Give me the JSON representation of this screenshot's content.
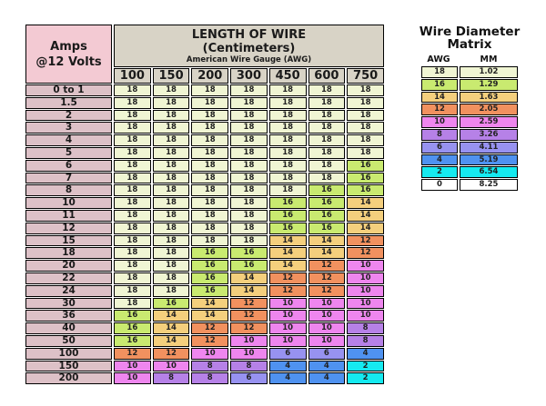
{
  "chart_data": [
    {
      "type": "table",
      "corner_header_line1": "Amps",
      "corner_header_line2": "@12 Volts",
      "title": "LENGTH OF WIRE",
      "subtitle": "(Centimeters)",
      "caption": "American Wire Gauge (AWG)",
      "columns": [
        "100",
        "150",
        "200",
        "300",
        "450",
        "600",
        "750"
      ],
      "rows": [
        {
          "label": "0 to 1",
          "values": [
            18,
            18,
            18,
            18,
            18,
            18,
            18
          ]
        },
        {
          "label": "1.5",
          "values": [
            18,
            18,
            18,
            18,
            18,
            18,
            18
          ]
        },
        {
          "label": "2",
          "values": [
            18,
            18,
            18,
            18,
            18,
            18,
            18
          ]
        },
        {
          "label": "3",
          "values": [
            18,
            18,
            18,
            18,
            18,
            18,
            18
          ]
        },
        {
          "label": "4",
          "values": [
            18,
            18,
            18,
            18,
            18,
            18,
            18
          ]
        },
        {
          "label": "5",
          "values": [
            18,
            18,
            18,
            18,
            18,
            18,
            18
          ]
        },
        {
          "label": "6",
          "values": [
            18,
            18,
            18,
            18,
            18,
            18,
            16
          ]
        },
        {
          "label": "7",
          "values": [
            18,
            18,
            18,
            18,
            18,
            18,
            16
          ]
        },
        {
          "label": "8",
          "values": [
            18,
            18,
            18,
            18,
            18,
            16,
            16
          ]
        },
        {
          "label": "10",
          "values": [
            18,
            18,
            18,
            18,
            16,
            16,
            14
          ]
        },
        {
          "label": "11",
          "values": [
            18,
            18,
            18,
            18,
            16,
            16,
            14
          ]
        },
        {
          "label": "12",
          "values": [
            18,
            18,
            18,
            18,
            16,
            16,
            14
          ]
        },
        {
          "label": "15",
          "values": [
            18,
            18,
            18,
            18,
            14,
            14,
            12
          ]
        },
        {
          "label": "18",
          "values": [
            18,
            18,
            16,
            16,
            14,
            14,
            12
          ]
        },
        {
          "label": "20",
          "values": [
            18,
            18,
            16,
            16,
            14,
            12,
            10
          ]
        },
        {
          "label": "22",
          "values": [
            18,
            18,
            16,
            14,
            12,
            12,
            10
          ]
        },
        {
          "label": "24",
          "values": [
            18,
            18,
            16,
            14,
            12,
            12,
            10
          ]
        },
        {
          "label": "30",
          "values": [
            18,
            16,
            14,
            12,
            10,
            10,
            10
          ]
        },
        {
          "label": "36",
          "values": [
            16,
            14,
            14,
            12,
            10,
            10,
            10
          ]
        },
        {
          "label": "40",
          "values": [
            16,
            14,
            12,
            12,
            10,
            10,
            8
          ]
        },
        {
          "label": "50",
          "values": [
            16,
            14,
            12,
            10,
            10,
            10,
            8
          ]
        },
        {
          "label": "100",
          "values": [
            12,
            12,
            10,
            10,
            6,
            6,
            4
          ]
        },
        {
          "label": "150",
          "values": [
            10,
            10,
            8,
            8,
            4,
            4,
            2
          ]
        },
        {
          "label": "200",
          "values": [
            10,
            8,
            8,
            6,
            4,
            4,
            2
          ]
        }
      ]
    },
    {
      "type": "table",
      "title_line1": "Wire Diameter",
      "title_line2": "Matrix",
      "columns": [
        "AWG",
        "MM"
      ],
      "rows": [
        {
          "awg": 18,
          "mm": "1.02"
        },
        {
          "awg": 16,
          "mm": "1.29"
        },
        {
          "awg": 14,
          "mm": "1.63"
        },
        {
          "awg": 12,
          "mm": "2.05"
        },
        {
          "awg": 10,
          "mm": "2.59"
        },
        {
          "awg": 8,
          "mm": "3.26"
        },
        {
          "awg": 6,
          "mm": "4.11"
        },
        {
          "awg": 4,
          "mm": "5.19"
        },
        {
          "awg": 2,
          "mm": "6.54"
        },
        {
          "awg": 0,
          "mm": "8.25"
        }
      ]
    }
  ],
  "colors": {
    "gauge": {
      "18": "#f0f5d3",
      "16": "#c9ea70",
      "14": "#f4cf7d",
      "12": "#f1915f",
      "10": "#ee86ee",
      "8": "#b681e7",
      "6": "#9792f0",
      "4": "#4f92f0",
      "2": "#15eaf0",
      "0": "#ffffff"
    },
    "amps_header_bg": "#f3cad3",
    "row_label_bg": "#ddc1c7",
    "table_header_bg": "#d8d3c6",
    "border": "#000000",
    "page_bg": "#ffffff"
  }
}
